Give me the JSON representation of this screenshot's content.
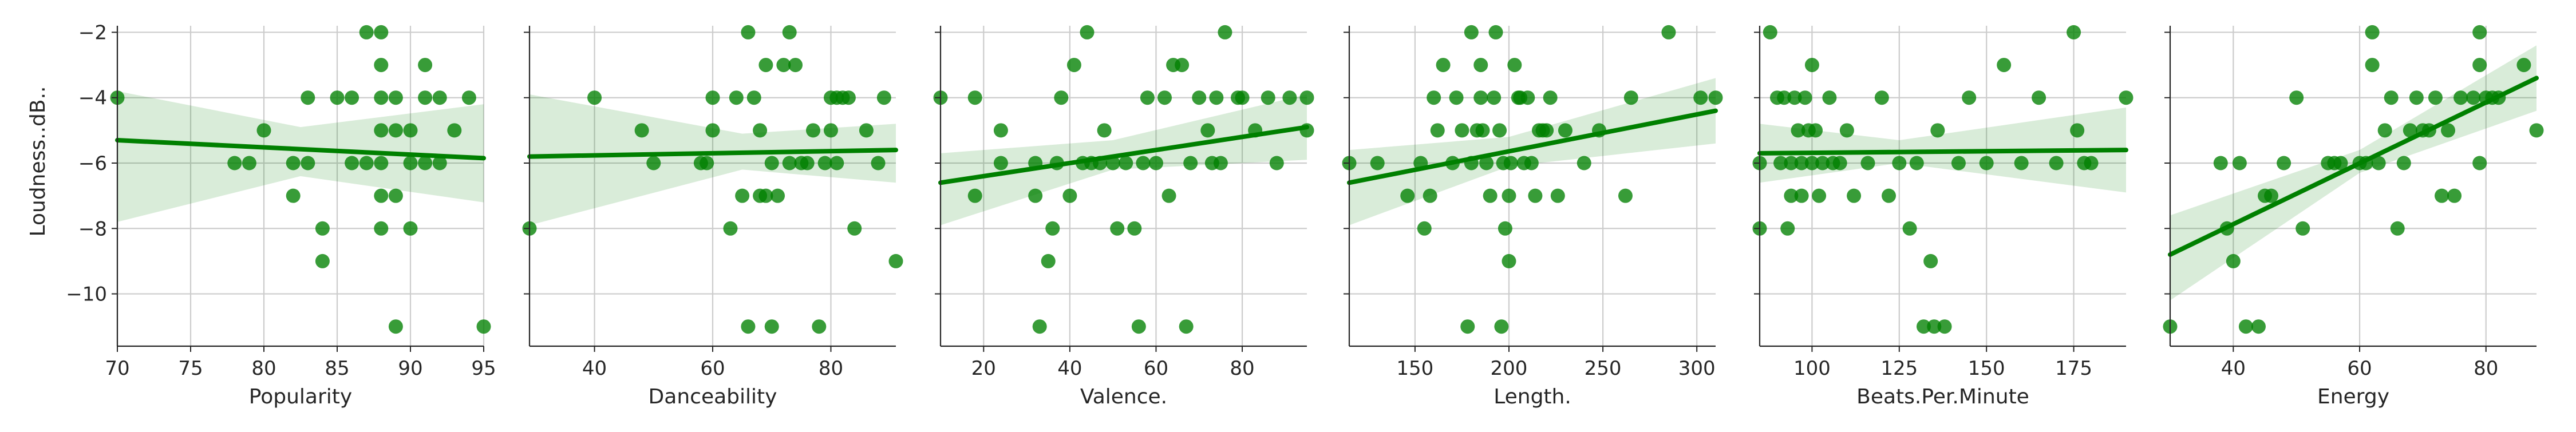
{
  "colors": {
    "points": "#008000",
    "band": "#008000",
    "grid": "#cccccc",
    "axis": "#262626"
  },
  "chart_data": {
    "type": "scatter",
    "title": "",
    "grid": true,
    "ylabel": "Loudness..dB..",
    "ylim": [
      -11.6,
      -1.8
    ],
    "yticks": [
      -2,
      -4,
      -6,
      -8,
      -10
    ],
    "ytick_labels": [
      "−2",
      "−4",
      "−6",
      "−8",
      "−10"
    ],
    "panels": [
      {
        "xlabel": "Popularity",
        "xlim": [
          70,
          95
        ],
        "xticks": [
          70,
          75,
          80,
          85,
          90,
          95
        ],
        "xtick_labels": [
          "70",
          "75",
          "80",
          "85",
          "90",
          "95"
        ],
        "points": [
          [
            70,
            -4
          ],
          [
            78,
            -6
          ],
          [
            79,
            -6
          ],
          [
            80,
            -5
          ],
          [
            82,
            -7
          ],
          [
            82,
            -6
          ],
          [
            83,
            -6
          ],
          [
            83,
            -4
          ],
          [
            84,
            -8
          ],
          [
            84,
            -9
          ],
          [
            85,
            -4
          ],
          [
            86,
            -4
          ],
          [
            86,
            -6
          ],
          [
            87,
            -2
          ],
          [
            87,
            -6
          ],
          [
            88,
            -2
          ],
          [
            88,
            -3
          ],
          [
            88,
            -4
          ],
          [
            88,
            -5
          ],
          [
            88,
            -6
          ],
          [
            88,
            -7
          ],
          [
            88,
            -8
          ],
          [
            89,
            -4
          ],
          [
            89,
            -5
          ],
          [
            89,
            -7
          ],
          [
            89,
            -11
          ],
          [
            90,
            -5
          ],
          [
            90,
            -6
          ],
          [
            90,
            -8
          ],
          [
            91,
            -3
          ],
          [
            91,
            -4
          ],
          [
            91,
            -6
          ],
          [
            92,
            -4
          ],
          [
            92,
            -6
          ],
          [
            93,
            -5
          ],
          [
            94,
            -4
          ],
          [
            95,
            -11
          ]
        ],
        "fit": [
          [
            70,
            -5.3
          ],
          [
            95,
            -5.85
          ]
        ],
        "band": [
          [
            70,
            -3.8,
            -7.8
          ],
          [
            82.5,
            -4.9,
            -6.4
          ],
          [
            95,
            -4.2,
            -7.2
          ]
        ]
      },
      {
        "xlabel": "Danceability",
        "xlim": [
          29,
          91
        ],
        "xticks": [
          40,
          60,
          80
        ],
        "xtick_labels": [
          "40",
          "60",
          "80"
        ],
        "points": [
          [
            29,
            -8
          ],
          [
            40,
            -4
          ],
          [
            48,
            -5
          ],
          [
            50,
            -6
          ],
          [
            58,
            -6
          ],
          [
            59,
            -6
          ],
          [
            60,
            -5
          ],
          [
            60,
            -4
          ],
          [
            63,
            -8
          ],
          [
            64,
            -4
          ],
          [
            65,
            -7
          ],
          [
            66,
            -2
          ],
          [
            66,
            -11
          ],
          [
            67,
            -4
          ],
          [
            68,
            -5
          ],
          [
            68,
            -7
          ],
          [
            69,
            -3
          ],
          [
            69,
            -7
          ],
          [
            70,
            -6
          ],
          [
            70,
            -11
          ],
          [
            71,
            -7
          ],
          [
            72,
            -3
          ],
          [
            73,
            -2
          ],
          [
            73,
            -6
          ],
          [
            74,
            -3
          ],
          [
            75,
            -6
          ],
          [
            76,
            -6
          ],
          [
            77,
            -5
          ],
          [
            78,
            -11
          ],
          [
            79,
            -6
          ],
          [
            80,
            -4
          ],
          [
            80,
            -5
          ],
          [
            81,
            -4
          ],
          [
            81,
            -6
          ],
          [
            82,
            -4
          ],
          [
            83,
            -4
          ],
          [
            84,
            -8
          ],
          [
            86,
            -5
          ],
          [
            88,
            -6
          ],
          [
            89,
            -4
          ],
          [
            91,
            -9
          ]
        ],
        "fit": [
          [
            29,
            -5.8
          ],
          [
            91,
            -5.6
          ]
        ],
        "band": [
          [
            29,
            -3.9,
            -7.9
          ],
          [
            65,
            -5.1,
            -6.2
          ],
          [
            91,
            -4.8,
            -6.6
          ]
        ]
      },
      {
        "xlabel": "Valence.",
        "xlim": [
          10,
          95
        ],
        "xticks": [
          20,
          40,
          60,
          80
        ],
        "xtick_labels": [
          "20",
          "40",
          "60",
          "80"
        ],
        "points": [
          [
            10,
            -4
          ],
          [
            18,
            -4
          ],
          [
            18,
            -7
          ],
          [
            24,
            -6
          ],
          [
            24,
            -5
          ],
          [
            32,
            -6
          ],
          [
            32,
            -7
          ],
          [
            33,
            -11
          ],
          [
            35,
            -9
          ],
          [
            36,
            -8
          ],
          [
            37,
            -6
          ],
          [
            38,
            -4
          ],
          [
            40,
            -7
          ],
          [
            41,
            -3
          ],
          [
            43,
            -6
          ],
          [
            44,
            -2
          ],
          [
            45,
            -6
          ],
          [
            47,
            -6
          ],
          [
            48,
            -5
          ],
          [
            50,
            -6
          ],
          [
            51,
            -8
          ],
          [
            53,
            -6
          ],
          [
            55,
            -8
          ],
          [
            56,
            -11
          ],
          [
            57,
            -6
          ],
          [
            58,
            -4
          ],
          [
            60,
            -6
          ],
          [
            62,
            -4
          ],
          [
            63,
            -7
          ],
          [
            64,
            -3
          ],
          [
            66,
            -3
          ],
          [
            67,
            -11
          ],
          [
            68,
            -6
          ],
          [
            70,
            -4
          ],
          [
            72,
            -5
          ],
          [
            73,
            -6
          ],
          [
            74,
            -4
          ],
          [
            75,
            -6
          ],
          [
            76,
            -2
          ],
          [
            79,
            -4
          ],
          [
            80,
            -4
          ],
          [
            83,
            -5
          ],
          [
            86,
            -4
          ],
          [
            88,
            -6
          ],
          [
            91,
            -4
          ],
          [
            95,
            -4
          ],
          [
            95,
            -5
          ]
        ],
        "fit": [
          [
            10,
            -6.6
          ],
          [
            95,
            -4.9
          ]
        ],
        "band": [
          [
            10,
            -5.7,
            -7.9
          ],
          [
            50,
            -5.3,
            -6.2
          ],
          [
            95,
            -3.9,
            -5.9
          ]
        ]
      },
      {
        "xlabel": "Length.",
        "xlim": [
          115,
          310
        ],
        "xticks": [
          150,
          200,
          250,
          300
        ],
        "xtick_labels": [
          "150",
          "200",
          "250",
          "300"
        ],
        "points": [
          [
            115,
            -6
          ],
          [
            130,
            -6
          ],
          [
            146,
            -7
          ],
          [
            153,
            -6
          ],
          [
            155,
            -8
          ],
          [
            158,
            -7
          ],
          [
            160,
            -4
          ],
          [
            162,
            -5
          ],
          [
            165,
            -3
          ],
          [
            170,
            -6
          ],
          [
            172,
            -4
          ],
          [
            175,
            -5
          ],
          [
            178,
            -11
          ],
          [
            180,
            -2
          ],
          [
            180,
            -6
          ],
          [
            183,
            -5
          ],
          [
            185,
            -3
          ],
          [
            185,
            -4
          ],
          [
            186,
            -5
          ],
          [
            188,
            -6
          ],
          [
            190,
            -7
          ],
          [
            192,
            -4
          ],
          [
            193,
            -2
          ],
          [
            195,
            -5
          ],
          [
            196,
            -11
          ],
          [
            197,
            -6
          ],
          [
            198,
            -8
          ],
          [
            200,
            -7
          ],
          [
            200,
            -9
          ],
          [
            201,
            -6
          ],
          [
            203,
            -3
          ],
          [
            205,
            -4
          ],
          [
            206,
            -4
          ],
          [
            208,
            -6
          ],
          [
            210,
            -4
          ],
          [
            212,
            -6
          ],
          [
            214,
            -7
          ],
          [
            216,
            -5
          ],
          [
            218,
            -5
          ],
          [
            220,
            -5
          ],
          [
            222,
            -4
          ],
          [
            226,
            -7
          ],
          [
            230,
            -5
          ],
          [
            240,
            -6
          ],
          [
            248,
            -5
          ],
          [
            262,
            -7
          ],
          [
            265,
            -4
          ],
          [
            285,
            -2
          ],
          [
            302,
            -4
          ],
          [
            310,
            -4
          ]
        ],
        "fit": [
          [
            115,
            -6.6
          ],
          [
            310,
            -4.4
          ]
        ],
        "band": [
          [
            115,
            -5.6,
            -7.9
          ],
          [
            200,
            -5.2,
            -6.1
          ],
          [
            310,
            -3.4,
            -5.4
          ]
        ]
      },
      {
        "xlabel": "Beats.Per.Minute",
        "xlim": [
          85,
          190
        ],
        "xticks": [
          100,
          125,
          150,
          175
        ],
        "xtick_labels": [
          "100",
          "125",
          "150",
          "175"
        ],
        "points": [
          [
            85,
            -6
          ],
          [
            85,
            -8
          ],
          [
            88,
            -2
          ],
          [
            90,
            -4
          ],
          [
            91,
            -6
          ],
          [
            92,
            -4
          ],
          [
            93,
            -8
          ],
          [
            94,
            -6
          ],
          [
            94,
            -7
          ],
          [
            95,
            -4
          ],
          [
            96,
            -5
          ],
          [
            97,
            -6
          ],
          [
            97,
            -7
          ],
          [
            98,
            -4
          ],
          [
            99,
            -5
          ],
          [
            100,
            -3
          ],
          [
            100,
            -6
          ],
          [
            101,
            -5
          ],
          [
            102,
            -7
          ],
          [
            103,
            -6
          ],
          [
            105,
            -4
          ],
          [
            106,
            -6
          ],
          [
            108,
            -6
          ],
          [
            110,
            -5
          ],
          [
            112,
            -7
          ],
          [
            116,
            -6
          ],
          [
            120,
            -4
          ],
          [
            122,
            -7
          ],
          [
            125,
            -6
          ],
          [
            128,
            -8
          ],
          [
            130,
            -6
          ],
          [
            132,
            -11
          ],
          [
            134,
            -9
          ],
          [
            135,
            -11
          ],
          [
            136,
            -5
          ],
          [
            138,
            -11
          ],
          [
            142,
            -6
          ],
          [
            145,
            -4
          ],
          [
            150,
            -6
          ],
          [
            155,
            -3
          ],
          [
            160,
            -6
          ],
          [
            165,
            -4
          ],
          [
            170,
            -6
          ],
          [
            175,
            -2
          ],
          [
            176,
            -5
          ],
          [
            178,
            -6
          ],
          [
            180,
            -6
          ],
          [
            190,
            -4
          ]
        ],
        "fit": [
          [
            85,
            -5.7
          ],
          [
            190,
            -5.6
          ]
        ],
        "band": [
          [
            85,
            -4.8,
            -6.6
          ],
          [
            125,
            -5.3,
            -6.0
          ],
          [
            190,
            -4.3,
            -6.9
          ]
        ]
      },
      {
        "xlabel": "Energy",
        "xlim": [
          30,
          88
        ],
        "xticks": [
          40,
          60,
          80
        ],
        "xtick_labels": [
          "40",
          "60",
          "80"
        ],
        "points": [
          [
            30,
            -11
          ],
          [
            38,
            -6
          ],
          [
            39,
            -8
          ],
          [
            40,
            -9
          ],
          [
            41,
            -6
          ],
          [
            42,
            -11
          ],
          [
            44,
            -11
          ],
          [
            45,
            -7
          ],
          [
            46,
            -7
          ],
          [
            48,
            -6
          ],
          [
            50,
            -4
          ],
          [
            51,
            -8
          ],
          [
            55,
            -6
          ],
          [
            56,
            -6
          ],
          [
            57,
            -6
          ],
          [
            60,
            -6
          ],
          [
            61,
            -6
          ],
          [
            62,
            -2
          ],
          [
            62,
            -3
          ],
          [
            63,
            -6
          ],
          [
            64,
            -5
          ],
          [
            65,
            -4
          ],
          [
            66,
            -8
          ],
          [
            67,
            -6
          ],
          [
            68,
            -5
          ],
          [
            69,
            -4
          ],
          [
            70,
            -5
          ],
          [
            71,
            -5
          ],
          [
            72,
            -4
          ],
          [
            73,
            -7
          ],
          [
            74,
            -5
          ],
          [
            75,
            -7
          ],
          [
            76,
            -4
          ],
          [
            78,
            -4
          ],
          [
            79,
            -2
          ],
          [
            79,
            -3
          ],
          [
            79,
            -6
          ],
          [
            80,
            -4
          ],
          [
            81,
            -4
          ],
          [
            82,
            -4
          ],
          [
            86,
            -3
          ],
          [
            88,
            -5
          ]
        ],
        "fit": [
          [
            30,
            -8.8
          ],
          [
            88,
            -3.4
          ]
        ],
        "band": [
          [
            30,
            -7.6,
            -10.2
          ],
          [
            60,
            -5.6,
            -6.3
          ],
          [
            88,
            -2.4,
            -4.4
          ]
        ]
      }
    ]
  }
}
